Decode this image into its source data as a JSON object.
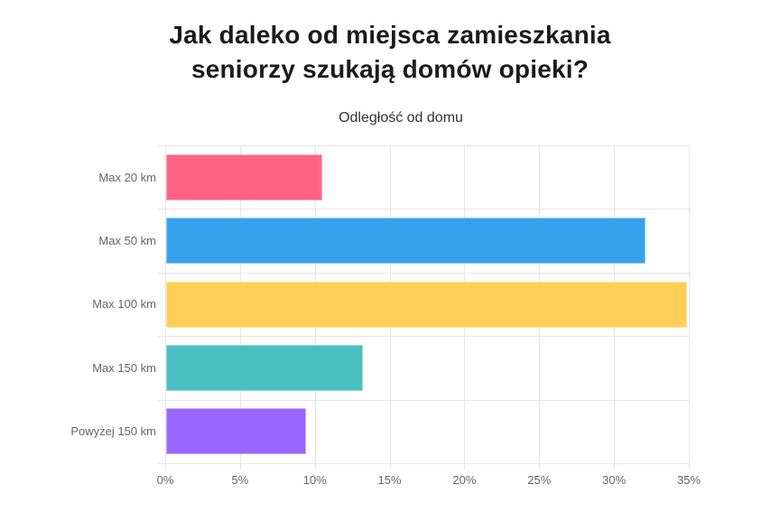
{
  "title": {
    "line1": "Jak daleko od miejsca zamieszkania",
    "line2": "seniorzy szukają domów opieki?"
  },
  "chart_data": {
    "type": "bar",
    "orientation": "horizontal",
    "title": "Odległość od domu",
    "categories": [
      "Max 20 km",
      "Max 50 km",
      "Max 100 km",
      "Max 150 km",
      "Powyżej 150 km"
    ],
    "values": [
      10.5,
      32.1,
      34.9,
      13.2,
      9.4
    ],
    "unit": "%",
    "bar_colors": [
      "#FF6384",
      "#36A2EB",
      "#FFCE56",
      "#4BC0C0",
      "#9966FF"
    ],
    "x_ticks": [
      "0%",
      "5%",
      "10%",
      "15%",
      "20%",
      "25%",
      "30%",
      "35%"
    ],
    "xlim": [
      0,
      35
    ],
    "grid": true,
    "legend": "none"
  },
  "colors": {
    "background": "#ffffff",
    "grid": "#e6e6e6",
    "axis_text": "#666666",
    "title_text": "#1b1b1b",
    "subtitle_text": "#333333"
  }
}
